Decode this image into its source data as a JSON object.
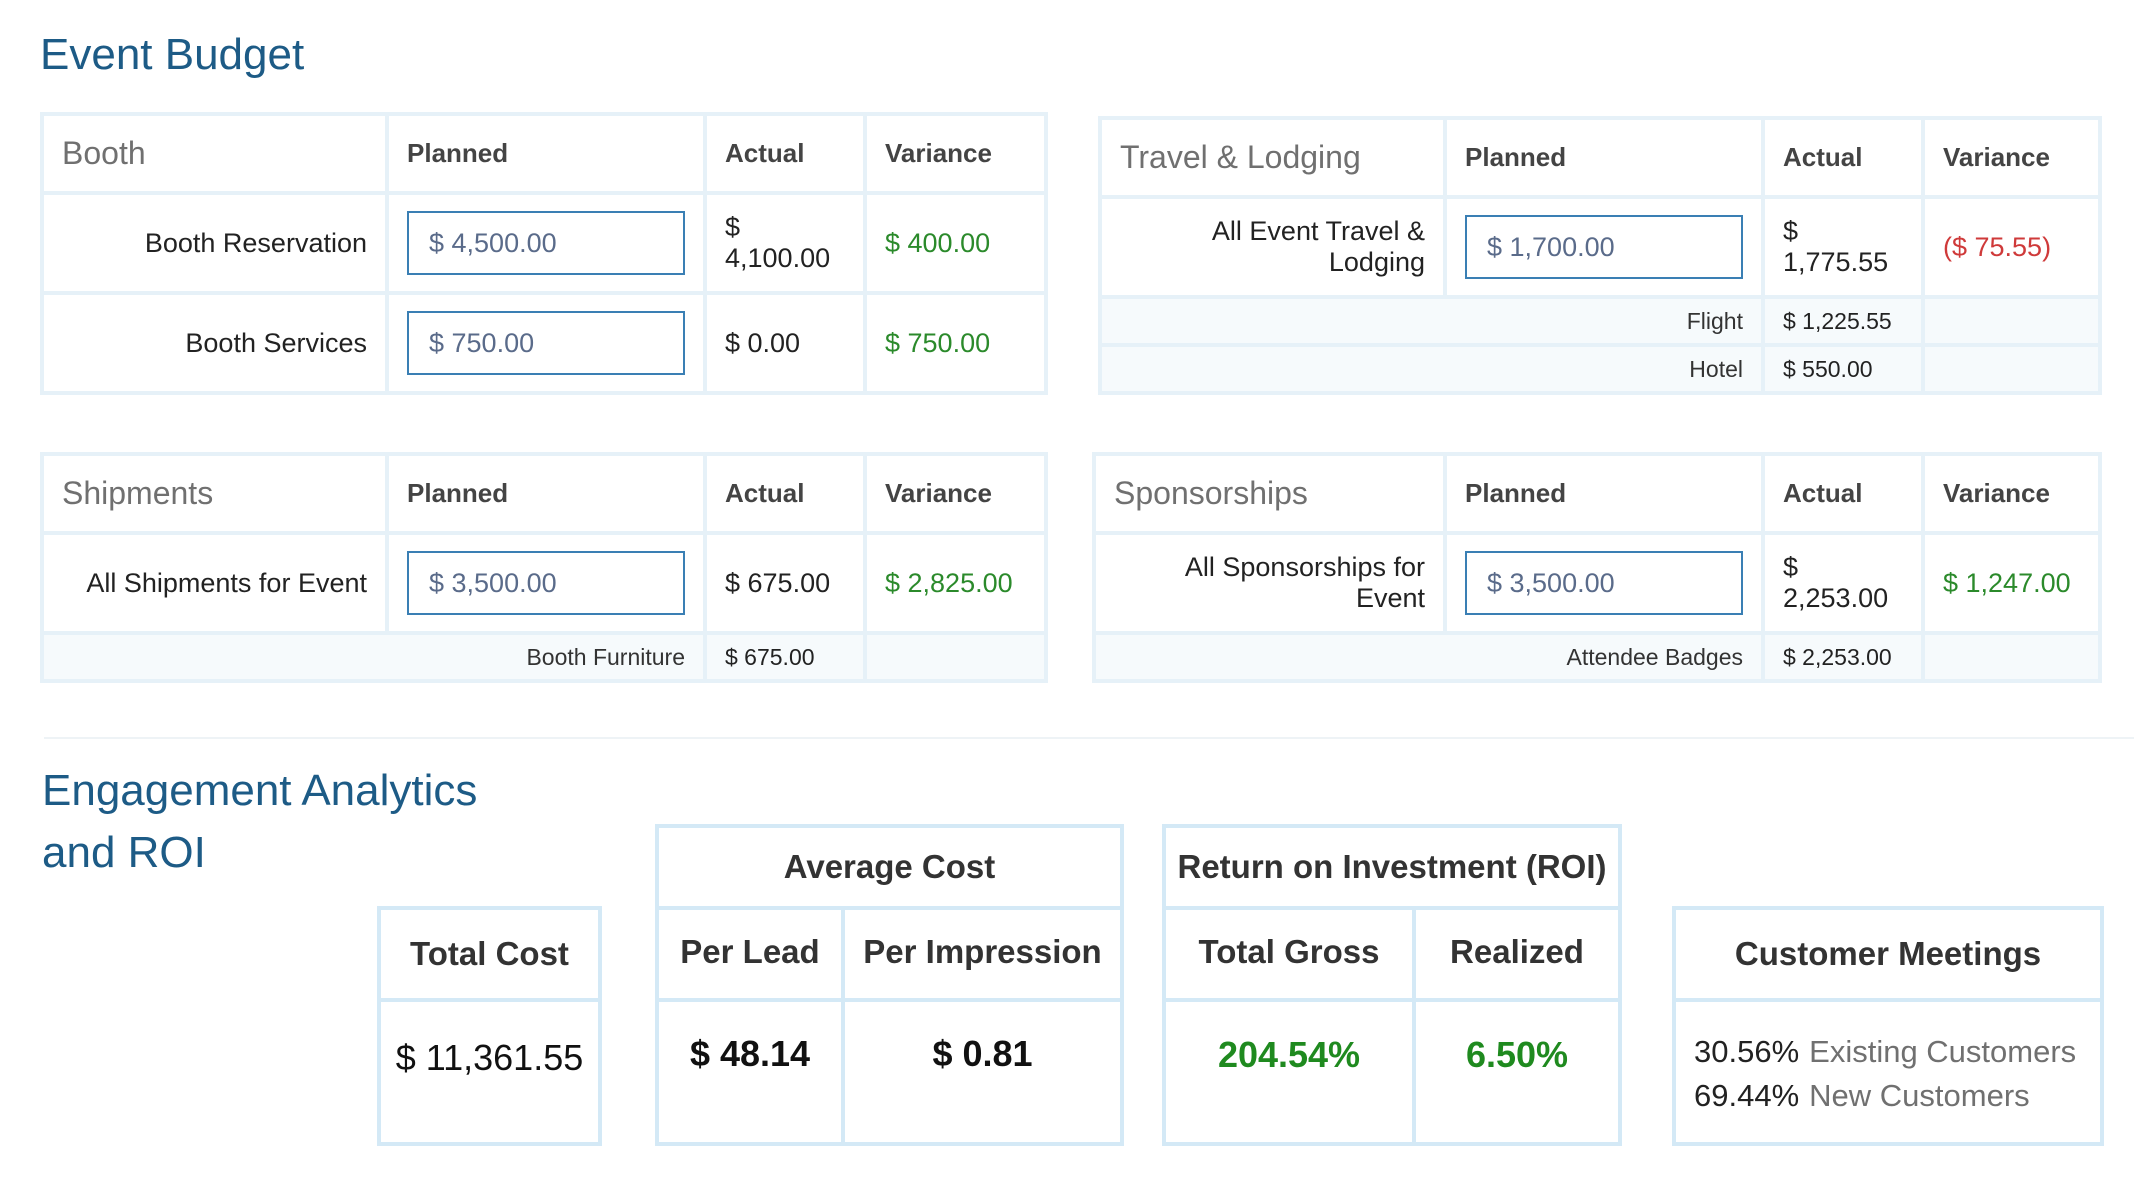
{
  "budget": {
    "title": "Event Budget",
    "columns": {
      "planned": "Planned",
      "actual": "Actual",
      "variance": "Variance"
    },
    "booth": {
      "label": "Booth",
      "rows": [
        {
          "name": "Booth Reservation",
          "planned": "$ 4,500.00",
          "actual": "$ 4,100.00",
          "variance": "$ 400.00"
        },
        {
          "name": "Booth Services",
          "planned": "$ 750.00",
          "actual": "$ 0.00",
          "variance": "$ 750.00"
        }
      ]
    },
    "travel": {
      "label": "Travel & Lodging",
      "rows": [
        {
          "name": "All Event Travel & Lodging",
          "planned": "$ 1,700.00",
          "actual": "$ 1,775.55",
          "variance": "($ 75.55)"
        }
      ],
      "sub": [
        {
          "name": "Flight",
          "actual": "$ 1,225.55"
        },
        {
          "name": "Hotel",
          "actual": "$ 550.00"
        }
      ]
    },
    "shipments": {
      "label": "Shipments",
      "rows": [
        {
          "name": "All Shipments for Event",
          "planned": "$ 3,500.00",
          "actual": "$ 675.00",
          "variance": "$ 2,825.00"
        }
      ],
      "sub": [
        {
          "name": "Booth Furniture",
          "actual": "$ 675.00"
        }
      ]
    },
    "sponsorships": {
      "label": "Sponsorships",
      "rows": [
        {
          "name": "All Sponsorships for Event",
          "planned": "$ 3,500.00",
          "actual": "$ 2,253.00",
          "variance": "$ 1,247.00"
        }
      ],
      "sub": [
        {
          "name": "Attendee Badges",
          "actual": "$ 2,253.00"
        }
      ]
    }
  },
  "analytics": {
    "title_line1": "Engagement Analytics",
    "title_line2": "and ROI",
    "total_cost": {
      "label": "Total Cost",
      "value": "$ 11,361.55"
    },
    "average_cost": {
      "label": "Average Cost",
      "per_lead_label": "Per Lead",
      "per_lead_value": "$ 48.14",
      "per_impression_label": "Per Impression",
      "per_impression_value": "$ 0.81"
    },
    "roi": {
      "label": "Return on Investment (ROI)",
      "total_gross_label": "Total Gross",
      "total_gross_value": "204.54%",
      "realized_label": "Realized",
      "realized_value": "6.50%"
    },
    "meetings": {
      "label": "Customer Meetings",
      "existing_pct": "30.56%",
      "existing_label": "Existing Customers",
      "new_pct": "69.44%",
      "new_label": "New Customers"
    }
  },
  "colors": {
    "heading": "#1d5b86",
    "positive": "#2b8a2b",
    "negative": "#cf3a3a",
    "border": "#d4e9f6"
  }
}
